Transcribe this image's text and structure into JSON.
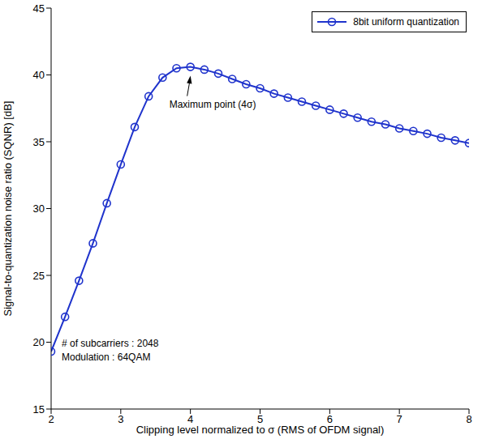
{
  "chart_data": {
    "type": "line",
    "x_label": "Clipping level normalized to σ (RMS of OFDM signal)",
    "y_label": "Signal-to-quantization noise ratio (SQNR) [dB]",
    "x": [
      2,
      2.2,
      2.4,
      2.6,
      2.8,
      3,
      3.2,
      3.4,
      3.6,
      3.8,
      4,
      4.2,
      4.4,
      4.6,
      4.8,
      5,
      5.2,
      5.4,
      5.6,
      5.8,
      6,
      6.2,
      6.4,
      6.6,
      6.8,
      7,
      7.2,
      7.4,
      7.6,
      7.8,
      8
    ],
    "series": [
      {
        "name": "8bit uniform quantization",
        "color": "#1f33cc",
        "marker": "circle",
        "line_style": "solid",
        "values": [
          19.3,
          21.9,
          24.6,
          27.4,
          30.4,
          33.3,
          36.1,
          38.4,
          39.8,
          40.5,
          40.6,
          40.4,
          40.1,
          39.7,
          39.3,
          39.0,
          38.6,
          38.3,
          38.0,
          37.7,
          37.4,
          37.1,
          36.8,
          36.5,
          36.3,
          36.0,
          35.8,
          35.6,
          35.3,
          35.1,
          34.9
        ]
      }
    ],
    "xlim": [
      2,
      8
    ],
    "xticks": [
      2,
      3,
      4,
      5,
      6,
      7,
      8
    ],
    "ylim": [
      15,
      45
    ],
    "yticks": [
      15,
      20,
      25,
      30,
      35,
      40,
      45
    ],
    "grid": false,
    "legend": "upper right",
    "annotations": [
      {
        "text": "Maximum point (4σ)",
        "x": 4,
        "y": 40.6
      }
    ],
    "notes": [
      "# of subcarriers : 2048",
      "Modulation : 64QAM"
    ]
  }
}
